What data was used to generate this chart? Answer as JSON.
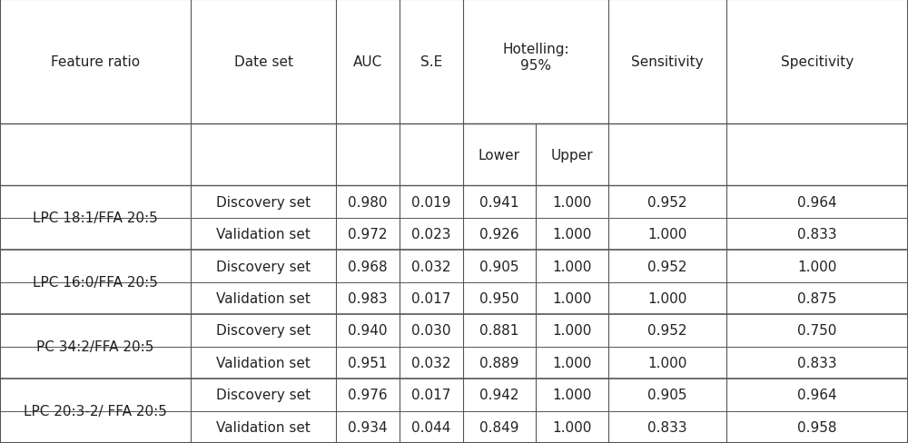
{
  "feature_ratios": [
    "LPC 18:1/FFA 20:5",
    "LPC 16:0/FFA 20:5",
    "PC 34:2/FFA 20:5",
    "LPC 20:3-2/ FFA 20:5"
  ],
  "rows": [
    {
      "feature": "LPC 18:1/FFA 20:5",
      "dataset": "Discovery set",
      "AUC": "0.980",
      "SE": "0.019",
      "Lower": "0.941",
      "Upper": "1.000",
      "Sensitivity": "0.952",
      "Specificity": "0.964"
    },
    {
      "feature": "LPC 18:1/FFA 20:5",
      "dataset": "Validation set",
      "AUC": "0.972",
      "SE": "0.023",
      "Lower": "0.926",
      "Upper": "1.000",
      "Sensitivity": "1.000",
      "Specificity": "0.833"
    },
    {
      "feature": "LPC 16:0/FFA 20:5",
      "dataset": "Discovery set",
      "AUC": "0.968",
      "SE": "0.032",
      "Lower": "0.905",
      "Upper": "1.000",
      "Sensitivity": "0.952",
      "Specificity": "1.000"
    },
    {
      "feature": "LPC 16:0/FFA 20:5",
      "dataset": "Validation set",
      "AUC": "0.983",
      "SE": "0.017",
      "Lower": "0.950",
      "Upper": "1.000",
      "Sensitivity": "1.000",
      "Specificity": "0.875"
    },
    {
      "feature": "PC 34:2/FFA 20:5",
      "dataset": "Discovery set",
      "AUC": "0.940",
      "SE": "0.030",
      "Lower": "0.881",
      "Upper": "1.000",
      "Sensitivity": "0.952",
      "Specificity": "0.750"
    },
    {
      "feature": "PC 34:2/FFA 20:5",
      "dataset": "Validation set",
      "AUC": "0.951",
      "SE": "0.032",
      "Lower": "0.889",
      "Upper": "1.000",
      "Sensitivity": "1.000",
      "Specificity": "0.833"
    },
    {
      "feature": "LPC 20:3-2/ FFA 20:5",
      "dataset": "Discovery set",
      "AUC": "0.976",
      "SE": "0.017",
      "Lower": "0.942",
      "Upper": "1.000",
      "Sensitivity": "0.905",
      "Specificity": "0.964"
    },
    {
      "feature": "LPC 20:3-2/ FFA 20:5",
      "dataset": "Validation set",
      "AUC": "0.934",
      "SE": "0.044",
      "Lower": "0.849",
      "Upper": "1.000",
      "Sensitivity": "0.833",
      "Specificity": "0.958"
    }
  ],
  "header1": [
    "Feature ratio",
    "Date set",
    "AUC",
    "S.E",
    "Hotelling:\n95%",
    "",
    "Sensitivity",
    "Specitivity"
  ],
  "header2": [
    "",
    "",
    "",
    "",
    "Lower",
    "Upper",
    "",
    ""
  ],
  "bg_color": "#ffffff",
  "line_color": "#555555",
  "text_color": "#222222",
  "font_size": 11
}
